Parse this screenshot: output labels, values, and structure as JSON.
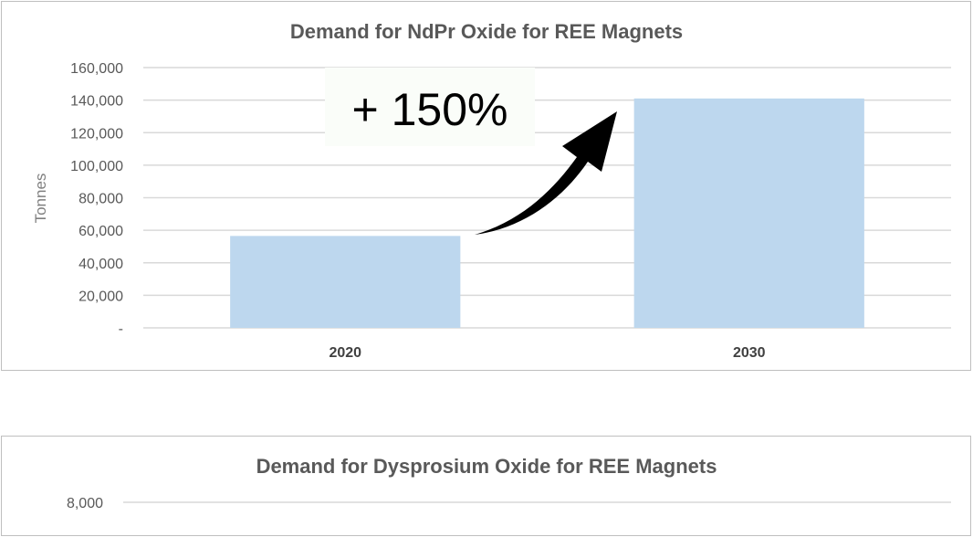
{
  "chart_data": [
    {
      "type": "bar",
      "title": "Demand for NdPr Oxide for REE Magnets",
      "ylabel": "Tonnes",
      "xlabel": "",
      "categories": [
        "2020",
        "2030"
      ],
      "values": [
        56500,
        141000
      ],
      "ylim": [
        0,
        160000
      ],
      "yticks": [
        0,
        20000,
        40000,
        60000,
        80000,
        100000,
        120000,
        140000,
        160000
      ],
      "ytick_labels": [
        "-",
        "20,000",
        "40,000",
        "60,000",
        "80,000",
        "100,000",
        "120,000",
        "140,000",
        "160,000"
      ],
      "grid": true,
      "bar_color": "#bdd7ee",
      "annotation": "+ 150%"
    },
    {
      "type": "bar",
      "title": "Demand for Dysprosium Oxide for REE Magnets",
      "ytick_labels": [
        "8,000"
      ],
      "yticks": [
        8000
      ],
      "grid": true
    }
  ]
}
